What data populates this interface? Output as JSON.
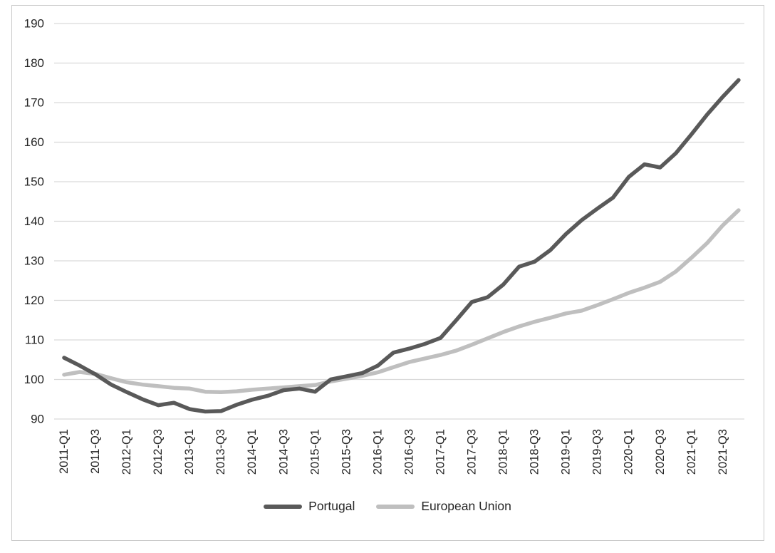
{
  "chart_data": {
    "type": "line",
    "title": "",
    "xlabel": "",
    "ylabel": "",
    "ylim": [
      90,
      190
    ],
    "ytick_step": 10,
    "y_tick_labels": [
      "90",
      "100",
      "110",
      "120",
      "130",
      "140",
      "150",
      "160",
      "170",
      "180",
      "190"
    ],
    "grid": "horizontal-only",
    "legend_position": "bottom-center",
    "gridline_color": "#d9d9d9",
    "text_color": "#262626",
    "x_categories": [
      "2011-Q1",
      "2011-Q2",
      "2011-Q3",
      "2011-Q4",
      "2012-Q1",
      "2012-Q2",
      "2012-Q3",
      "2012-Q4",
      "2013-Q1",
      "2013-Q2",
      "2013-Q3",
      "2013-Q4",
      "2014-Q1",
      "2014-Q2",
      "2014-Q3",
      "2014-Q4",
      "2015-Q1",
      "2015-Q2",
      "2015-Q3",
      "2015-Q4",
      "2016-Q1",
      "2016-Q2",
      "2016-Q3",
      "2016-Q4",
      "2017-Q1",
      "2017-Q2",
      "2017-Q3",
      "2017-Q4",
      "2018-Q1",
      "2018-Q2",
      "2018-Q3",
      "2018-Q4",
      "2019-Q1",
      "2019-Q2",
      "2019-Q3",
      "2019-Q4",
      "2020-Q1",
      "2020-Q2",
      "2020-Q3",
      "2020-Q4",
      "2021-Q1",
      "2021-Q2",
      "2021-Q3",
      "2021-Q4"
    ],
    "x_tick_labels": [
      "2011-Q1",
      "2011-Q3",
      "2012-Q1",
      "2012-Q3",
      "2013-Q1",
      "2013-Q3",
      "2014-Q1",
      "2014-Q3",
      "2015-Q1",
      "2015-Q3",
      "2016-Q1",
      "2016-Q3",
      "2017-Q1",
      "2017-Q3",
      "2018-Q1",
      "2018-Q3",
      "2019-Q1",
      "2019-Q3",
      "2020-Q1",
      "2020-Q3",
      "2021-Q1",
      "2021-Q3"
    ],
    "x_tick_every": 2,
    "series": [
      {
        "name": "Portugal",
        "color": "#595959",
        "values": [
          105.5,
          103.5,
          101.3,
          98.7,
          96.8,
          95.0,
          93.5,
          94.1,
          92.5,
          91.9,
          92.0,
          93.6,
          94.9,
          95.9,
          97.3,
          97.7,
          96.9,
          100.0,
          100.8,
          101.6,
          103.5,
          106.8,
          107.8,
          109.0,
          110.5,
          115.0,
          119.6,
          120.8,
          124.0,
          128.5,
          129.8,
          132.7,
          136.8,
          140.3,
          143.2,
          146.0,
          151.2,
          154.4,
          153.6,
          157.2,
          162.0,
          167.0,
          171.5,
          175.7
        ]
      },
      {
        "name": "European Union",
        "color": "#bfbfbf",
        "values": [
          101.2,
          101.9,
          101.4,
          100.3,
          99.3,
          98.7,
          98.3,
          97.9,
          97.7,
          96.9,
          96.8,
          97.0,
          97.4,
          97.7,
          98.0,
          98.3,
          98.6,
          99.5,
          100.2,
          100.9,
          101.8,
          103.1,
          104.4,
          105.3,
          106.2,
          107.3,
          108.8,
          110.4,
          112.0,
          113.4,
          114.6,
          115.6,
          116.7,
          117.4,
          118.8,
          120.3,
          121.9,
          123.2,
          124.7,
          127.3,
          130.8,
          134.5,
          139.0,
          142.8
        ]
      }
    ]
  },
  "legend": {
    "items": [
      {
        "label": "Portugal"
      },
      {
        "label": "European Union"
      }
    ]
  }
}
